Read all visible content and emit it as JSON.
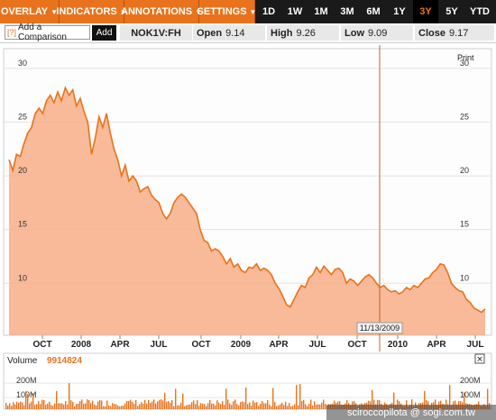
{
  "toolbar": {
    "menus": [
      {
        "label": "OVERLAY"
      },
      {
        "label": "INDICATORS"
      },
      {
        "label": "ANNOTATIONS"
      },
      {
        "label": "SETTINGS"
      }
    ],
    "ranges": [
      "1D",
      "1W",
      "1M",
      "3M",
      "6M",
      "1Y",
      "3Y",
      "5Y",
      "YTD"
    ],
    "active_range": "3Y"
  },
  "infobar": {
    "compare_icon": "[?]",
    "compare_placeholder": "Add a Comparison",
    "add_label": "Add",
    "ticker": "NOK1V:FH",
    "open_label": "Open",
    "open_value": "9.14",
    "high_label": "High",
    "high_value": "9.26",
    "low_label": "Low",
    "low_value": "9.09",
    "close_label": "Close",
    "close_value": "9.17"
  },
  "print_label": "Print",
  "crosshair_date": "11/13/2009",
  "volume": {
    "label": "Volume",
    "value": "9914824",
    "ticks": [
      "200M",
      "100M"
    ],
    "close_icon": "close-icon"
  },
  "watermark": "sciroccopilota @ sogi.com.tw",
  "colors": {
    "accent": "#e8731c",
    "area": "#f7ae86",
    "line": "#e8731c"
  },
  "chart_data": {
    "type": "area",
    "yticks": [
      10,
      15,
      20,
      25,
      30
    ],
    "ylim": [
      6.5,
      31.5
    ],
    "xticks": [
      "OCT",
      "2008",
      "APR",
      "JUL",
      "OCT",
      "2009",
      "APR",
      "JUL",
      "OCT",
      "2010",
      "APR",
      "JUL"
    ],
    "series": [
      {
        "values": [
          21.5,
          20.5,
          22.0,
          21.8,
          23.0,
          24.0,
          24.5,
          25.8,
          26.3,
          25.8,
          27.0,
          27.5,
          26.8,
          27.8,
          27.0,
          28.2,
          27.5,
          28.0,
          26.5,
          27.2,
          26.0,
          25.0,
          22.0,
          23.5,
          25.5,
          24.5,
          25.8,
          24.0,
          22.5,
          21.5,
          20.0,
          21.0,
          19.5,
          20.0,
          19.5,
          18.5,
          18.8,
          19.0,
          18.2,
          17.8,
          17.5,
          16.5,
          16.0,
          16.5,
          17.5,
          18.0,
          18.3,
          18.0,
          17.5,
          17.0,
          16.5,
          15.0,
          14.0,
          13.8,
          13.0,
          13.2,
          13.0,
          12.5,
          11.8,
          12.3,
          11.5,
          11.8,
          11.2,
          11.0,
          11.5,
          11.4,
          11.8,
          11.2,
          11.4,
          11.2,
          10.8,
          10.0,
          9.5,
          8.8,
          8.0,
          7.8,
          8.5,
          9.2,
          9.8,
          9.6,
          10.5,
          10.8,
          11.5,
          11.0,
          11.6,
          11.2,
          10.8,
          11.3,
          11.4,
          11.0,
          10.0,
          10.4,
          10.2,
          9.8,
          10.2,
          10.6,
          10.8,
          10.5,
          10.0,
          9.6,
          9.8,
          9.4,
          9.2,
          9.3,
          9.0,
          9.2,
          9.6,
          9.4,
          9.8,
          9.6,
          10.0,
          10.4,
          10.5,
          11.0,
          11.3,
          11.8,
          11.7,
          11.0,
          10.0,
          9.6,
          9.3,
          9.2,
          8.5,
          8.2,
          7.7,
          7.5,
          7.3,
          7.6
        ]
      }
    ]
  }
}
